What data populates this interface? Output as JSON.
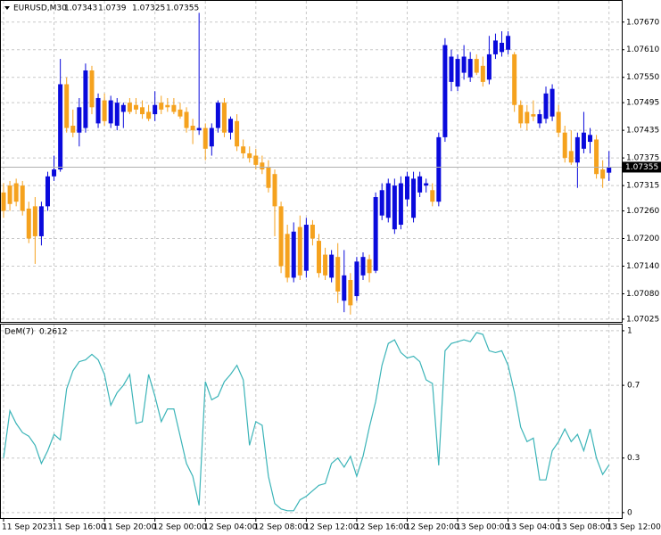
{
  "chart_data": [
    {
      "type": "candlestick",
      "title": "EURUSD,M30",
      "categories": [
        "11 Sep 2023",
        null,
        null,
        null,
        null,
        null,
        null,
        null,
        "11 Sep 16:00",
        null,
        null,
        null,
        null,
        null,
        null,
        null,
        "11 Sep 20:00",
        null,
        null,
        null,
        null,
        null,
        null,
        null,
        "12 Sep 00:00",
        null,
        null,
        null,
        null,
        null,
        null,
        null,
        "12 Sep 04:00",
        null,
        null,
        null,
        null,
        null,
        null,
        null,
        "12 Sep 08:00",
        null,
        null,
        null,
        null,
        null,
        null,
        null,
        "12 Sep 12:00",
        null,
        null,
        null,
        null,
        null,
        null,
        null,
        "12 Sep 16:00",
        null,
        null,
        null,
        null,
        null,
        null,
        null,
        "12 Sep 20:00",
        null,
        null,
        null,
        null,
        null,
        null,
        null,
        "13 Sep 00:00",
        null,
        null,
        null,
        null,
        null,
        null,
        null,
        "13 Sep 04:00",
        null,
        null,
        null,
        null,
        null,
        null,
        null,
        "13 Sep 08:00",
        null,
        null,
        null,
        null,
        null,
        null,
        null,
        "13 Sep 12:00"
      ],
      "open": [
        1.073,
        1.07315,
        1.0732,
        1.07315,
        1.07265,
        1.0727,
        1.07205,
        1.0727,
        1.07335,
        1.0735,
        1.07535,
        1.07445,
        1.0743,
        1.0744,
        1.07565,
        1.0745,
        1.075,
        1.0745,
        1.07445,
        1.07475,
        1.07495,
        1.0749,
        1.07485,
        1.07475,
        1.0747,
        1.07495,
        1.0749,
        1.0749,
        1.0748,
        1.07475,
        1.07445,
        1.07435,
        1.0744,
        1.074,
        1.0744,
        1.07495,
        1.0743,
        1.07455,
        1.074,
        1.07385,
        1.0738,
        1.07365,
        1.07355,
        1.0734,
        1.0727,
        1.0721,
        1.07115,
        1.07225,
        1.0713,
        1.0723,
        1.07195,
        1.07165,
        1.07115,
        1.0716,
        1.07065,
        1.0711,
        1.07075,
        1.0712,
        1.07155,
        1.0713,
        1.0725,
        1.07245,
        1.0722,
        1.0723,
        1.07285,
        1.07245,
        1.073,
        1.07315,
        1.07305,
        1.0728,
        1.0742,
        1.0754,
        1.0753,
        1.0756,
        1.0755,
        1.0759,
        1.07575,
        1.07545,
        1.076,
        1.07605,
        1.0761,
        1.076,
        1.0749,
        1.07475,
        1.0747,
        1.0745,
        1.0746,
        1.07465,
        1.07475,
        1.0743,
        1.0739,
        1.07365,
        1.07395,
        1.0741,
        1.07415,
        1.0735,
        1.07343
      ],
      "high": [
        1.0732,
        1.07325,
        1.0733,
        1.07325,
        1.0728,
        1.0729,
        1.0728,
        1.07345,
        1.0738,
        1.0759,
        1.0755,
        1.0748,
        1.07505,
        1.0758,
        1.07575,
        1.07515,
        1.07515,
        1.0751,
        1.07505,
        1.07495,
        1.07505,
        1.07505,
        1.075,
        1.0749,
        1.0752,
        1.0751,
        1.07505,
        1.07505,
        1.07495,
        1.07485,
        1.0746,
        1.0769,
        1.0745,
        1.0745,
        1.075,
        1.07505,
        1.07465,
        1.0747,
        1.07415,
        1.074,
        1.07395,
        1.0738,
        1.0737,
        1.0735,
        1.0728,
        1.0723,
        1.07235,
        1.0725,
        1.07245,
        1.0724,
        1.0721,
        1.0718,
        1.07175,
        1.0719,
        1.07175,
        1.07125,
        1.0716,
        1.0717,
        1.07165,
        1.073,
        1.0732,
        1.0733,
        1.0733,
        1.07335,
        1.07345,
        1.07345,
        1.07345,
        1.0733,
        1.0732,
        1.0743,
        1.07635,
        1.0761,
        1.076,
        1.0762,
        1.07605,
        1.076,
        1.07595,
        1.0764,
        1.07645,
        1.0765,
        1.0765,
        1.07605,
        1.075,
        1.0749,
        1.075,
        1.0748,
        1.0753,
        1.07535,
        1.0749,
        1.07445,
        1.07435,
        1.0743,
        1.07475,
        1.0744,
        1.07425,
        1.0737,
        1.0739
      ],
      "low": [
        1.07245,
        1.0726,
        1.0727,
        1.0725,
        1.0719,
        1.07145,
        1.07185,
        1.0726,
        1.07325,
        1.07345,
        1.0743,
        1.0742,
        1.074,
        1.0743,
        1.0747,
        1.0744,
        1.07445,
        1.0744,
        1.07435,
        1.0744,
        1.0747,
        1.0747,
        1.0746,
        1.07455,
        1.07455,
        1.0747,
        1.07475,
        1.0747,
        1.0746,
        1.0743,
        1.07405,
        1.07425,
        1.0737,
        1.0738,
        1.0743,
        1.0742,
        1.07415,
        1.0739,
        1.07375,
        1.07365,
        1.0735,
        1.0734,
        1.073,
        1.07205,
        1.07125,
        1.07105,
        1.07105,
        1.0711,
        1.07115,
        1.07185,
        1.07115,
        1.0711,
        1.07105,
        1.0706,
        1.0704,
        1.07035,
        1.07065,
        1.0711,
        1.07105,
        1.07125,
        1.0724,
        1.07235,
        1.0721,
        1.0722,
        1.0727,
        1.07235,
        1.0729,
        1.073,
        1.0727,
        1.0727,
        1.0741,
        1.0752,
        1.0752,
        1.07545,
        1.0754,
        1.07555,
        1.0753,
        1.07535,
        1.0759,
        1.07595,
        1.076,
        1.07475,
        1.0744,
        1.07435,
        1.07455,
        1.0744,
        1.0745,
        1.07455,
        1.0742,
        1.07365,
        1.0736,
        1.0731,
        1.07385,
        1.07385,
        1.0733,
        1.0731,
        1.07325
      ],
      "close": [
        1.0726,
        1.07275,
        1.0728,
        1.0726,
        1.072,
        1.07205,
        1.0727,
        1.07335,
        1.0735,
        1.07535,
        1.0744,
        1.0743,
        1.07485,
        1.07565,
        1.07485,
        1.07505,
        1.07455,
        1.075,
        1.07495,
        1.0749,
        1.07475,
        1.0748,
        1.0747,
        1.0746,
        1.0749,
        1.0748,
        1.07485,
        1.07475,
        1.07465,
        1.0744,
        1.07435,
        1.0744,
        1.07395,
        1.0744,
        1.07495,
        1.0743,
        1.0746,
        1.074,
        1.07385,
        1.07375,
        1.0736,
        1.0735,
        1.0731,
        1.0727,
        1.0714,
        1.07115,
        1.07215,
        1.0712,
        1.0723,
        1.072,
        1.07125,
        1.0712,
        1.07165,
        1.07085,
        1.0712,
        1.07055,
        1.0715,
        1.0716,
        1.07125,
        1.0729,
        1.07305,
        1.0732,
        1.07315,
        1.0732,
        1.07335,
        1.0733,
        1.07335,
        1.0732,
        1.0728,
        1.0742,
        1.0762,
        1.07595,
        1.0759,
        1.07595,
        1.0759,
        1.0756,
        1.0754,
        1.076,
        1.0763,
        1.07625,
        1.0764,
        1.0749,
        1.0745,
        1.0745,
        1.07465,
        1.0747,
        1.07515,
        1.07525,
        1.0743,
        1.07375,
        1.07365,
        1.0742,
        1.0743,
        1.07425,
        1.0734,
        1.0733,
        1.07355
      ],
      "bull_color": "#0a0adc",
      "bear_color": "#f5a21e",
      "current_price": 1.07355,
      "ylim": [
        1.07019,
        1.07716
      ],
      "yticks": [
        {
          "value": 1.0767,
          "label": "1.07670"
        },
        {
          "value": 1.0761,
          "label": "1.07610"
        },
        {
          "value": 1.0755,
          "label": "1.07550"
        },
        1.07495,
        1.07435,
        1.07375,
        1.07315,
        {
          "value": 1.0726,
          "label": "1.07260"
        },
        {
          "value": 1.072,
          "label": "1.07200"
        },
        {
          "value": 1.0714,
          "label": "1.07140"
        },
        {
          "value": 1.0708,
          "label": "1.07080"
        },
        1.07025
      ],
      "grid": true
    },
    {
      "type": "line",
      "series": [
        {
          "name": "DeM(7)",
          "color": "#3bb4b8",
          "values": [
            0.3,
            0.56,
            0.49,
            0.44,
            0.42,
            0.37,
            0.27,
            0.34,
            0.43,
            0.4,
            0.68,
            0.78,
            0.83,
            0.84,
            0.87,
            0.84,
            0.76,
            0.59,
            0.66,
            0.7,
            0.76,
            0.49,
            0.5,
            0.76,
            0.64,
            0.5,
            0.57,
            0.57,
            0.42,
            0.27,
            0.2,
            0.04,
            0.72,
            0.62,
            0.64,
            0.72,
            0.76,
            0.81,
            0.73,
            0.37,
            0.5,
            0.48,
            0.2,
            0.05,
            0.02,
            0.01,
            0.01,
            0.07,
            0.09,
            0.12,
            0.15,
            0.16,
            0.27,
            0.3,
            0.25,
            0.31,
            0.2,
            0.31,
            0.47,
            0.61,
            0.81,
            0.93,
            0.95,
            0.88,
            0.85,
            0.86,
            0.83,
            0.73,
            0.71,
            0.26,
            0.89,
            0.93,
            0.94,
            0.95,
            0.94,
            0.99,
            0.98,
            0.89,
            0.88,
            0.89,
            0.81,
            0.66,
            0.47,
            0.39,
            0.41,
            0.18,
            0.18,
            0.34,
            0.39,
            0.46,
            0.39,
            0.43,
            0.34,
            0.46,
            0.3,
            0.21,
            0.2612
          ]
        }
      ],
      "ylim": [
        -0.03,
        1.034
      ],
      "yticks": [
        0,
        0.3,
        0.7,
        1
      ],
      "grid": true
    }
  ]
}
